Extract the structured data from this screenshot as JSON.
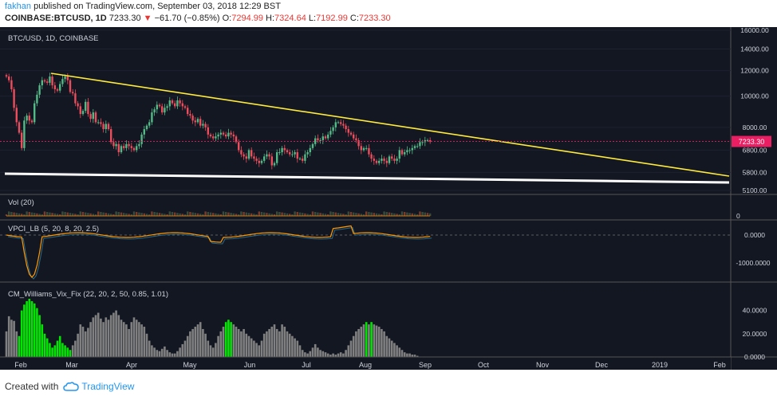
{
  "header": {
    "author": "fakhan",
    "published_text": "published on TradingView.com, September 03, 2018 12:29 BST",
    "symbol": "COINBASE:BTCUSD, 1D",
    "last": "7233.30",
    "change_arrow": "▼",
    "change": "−61.70 (−0.85%)",
    "o_label": "O:",
    "o_value": "7294.99",
    "h_label": "H:",
    "h_value": "7324.64",
    "l_label": "L:",
    "l_value": "7192.99",
    "c_label": "C:",
    "c_value": "7233.30"
  },
  "footer": {
    "created_with": "Created with",
    "brand": "TradingView"
  },
  "colors": {
    "background": "#131722",
    "up": "#53b987",
    "down": "#eb4d5c",
    "trendline": "#ffeb3b",
    "support": "#ffffff",
    "price_tag": "#e91e63",
    "vix_high": "#00e600",
    "vix_normal": "#808080",
    "vpci": "#ff9800",
    "vpci_signal": "#4caf50"
  },
  "chart_data": [
    {
      "type": "candlestick",
      "title": "BTC/USD, 1D, COINBASE",
      "ylim": [
        5100,
        16000
      ],
      "y_scale": "log",
      "y_ticks": [
        "16000.00",
        "14000.00",
        "12000.00",
        "10000.00",
        "8000.00",
        "6800.00",
        "5800.00",
        "5100.00"
      ],
      "last_price_label": "7233.30",
      "last_price": 7233.3,
      "x_ticks": [
        "Feb",
        "Mar",
        "Apr",
        "May",
        "Jun",
        "Jul",
        "Aug",
        "Sep",
        "Oct",
        "Nov",
        "Dec",
        "2019",
        "Feb"
      ],
      "closes": [
        11500,
        11200,
        10500,
        9200,
        8300,
        7700,
        6900,
        8400,
        8700,
        8400,
        8300,
        9500,
        10100,
        10800,
        11200,
        11100,
        11000,
        11500,
        10800,
        10500,
        10400,
        10900,
        11300,
        11500,
        11200,
        10300,
        10200,
        9500,
        9300,
        8800,
        9000,
        9600,
        8800,
        8500,
        8900,
        8300,
        8300,
        8200,
        7900,
        8200,
        7900,
        7200,
        7000,
        7100,
        6700,
        7000,
        6900,
        7100,
        7000,
        6900,
        6800,
        7000,
        7100,
        7600,
        7900,
        8100,
        8300,
        8900,
        9100,
        9400,
        9300,
        8900,
        9200,
        9300,
        9700,
        9500,
        9300,
        9700,
        9500,
        9300,
        9200,
        8800,
        8700,
        8400,
        8300,
        8500,
        8100,
        8200,
        8000,
        7600,
        7500,
        7400,
        7500,
        7600,
        7700,
        7600,
        7500,
        7700,
        7600,
        7500,
        7200,
        6800,
        6600,
        6500,
        6400,
        6800,
        6500,
        6400,
        6300,
        6200,
        6300,
        6500,
        6600,
        6500,
        6100,
        6200,
        6700,
        6700,
        6900,
        6800,
        6700,
        6600,
        6600,
        6700,
        6400,
        6400,
        6300,
        6600,
        6700,
        6900,
        7100,
        7400,
        7300,
        7300,
        7500,
        7400,
        7600,
        7800,
        8000,
        8300,
        8300,
        8200,
        8100,
        7900,
        7700,
        7600,
        7400,
        7300,
        7000,
        6800,
        6900,
        6900,
        6600,
        6400,
        6300,
        6200,
        6300,
        6400,
        6300,
        6200,
        6500,
        6400,
        6300,
        6400,
        6800,
        6600,
        6700,
        6800,
        6800,
        6900,
        7000,
        7000,
        7200,
        7200,
        7300,
        7300,
        7233
      ]
    },
    {
      "type": "bar",
      "title": "Vol (20)",
      "y_ticks": [
        "0"
      ]
    },
    {
      "type": "line",
      "title": "VPCI_LB (5, 20, 8, 20, 2.5)",
      "y_ticks": [
        "0.0000",
        "-1000.0000"
      ]
    },
    {
      "type": "bar",
      "title": "CM_Williams_Vix_Fix (22, 20, 2, 50, 0.85, 1.01)",
      "y_ticks": [
        "40.0000",
        "20.0000",
        "0.0000"
      ],
      "ylim": [
        0,
        50
      ],
      "values": [
        22,
        35,
        32,
        31,
        22,
        18,
        40,
        45,
        48,
        50,
        48,
        46,
        42,
        36,
        28,
        20,
        16,
        12,
        8,
        10,
        14,
        18,
        12,
        10,
        8,
        6,
        10,
        14,
        20,
        28,
        26,
        22,
        25,
        30,
        34,
        36,
        38,
        33,
        30,
        34,
        32,
        36,
        38,
        40,
        36,
        32,
        30,
        28,
        24,
        30,
        34,
        32,
        30,
        28,
        26,
        20,
        14,
        10,
        8,
        6,
        5,
        7,
        9,
        6,
        4,
        3,
        3,
        5,
        8,
        11,
        14,
        18,
        22,
        24,
        26,
        28,
        30,
        24,
        20,
        14,
        10,
        8,
        12,
        18,
        22,
        26,
        30,
        32,
        30,
        28,
        26,
        24,
        22,
        24,
        20,
        18,
        16,
        14,
        12,
        10,
        14,
        20,
        22,
        24,
        26,
        28,
        24,
        22,
        28,
        26,
        22,
        20,
        18,
        16,
        14,
        10,
        6,
        4,
        3,
        5,
        8,
        11,
        8,
        6,
        5,
        4,
        3,
        2,
        3,
        2,
        3,
        4,
        3,
        6,
        10,
        14,
        18,
        22,
        24,
        26,
        28,
        30,
        28,
        30,
        28,
        27,
        26,
        24,
        22,
        18,
        16,
        14,
        12,
        10,
        8,
        6,
        4,
        3,
        3,
        2,
        2,
        1
      ],
      "highlight": [
        5,
        6,
        7,
        8,
        9,
        10,
        11,
        12,
        13,
        14,
        15,
        16,
        17,
        18,
        19,
        20,
        21,
        22,
        23,
        24,
        25
      ]
    }
  ]
}
